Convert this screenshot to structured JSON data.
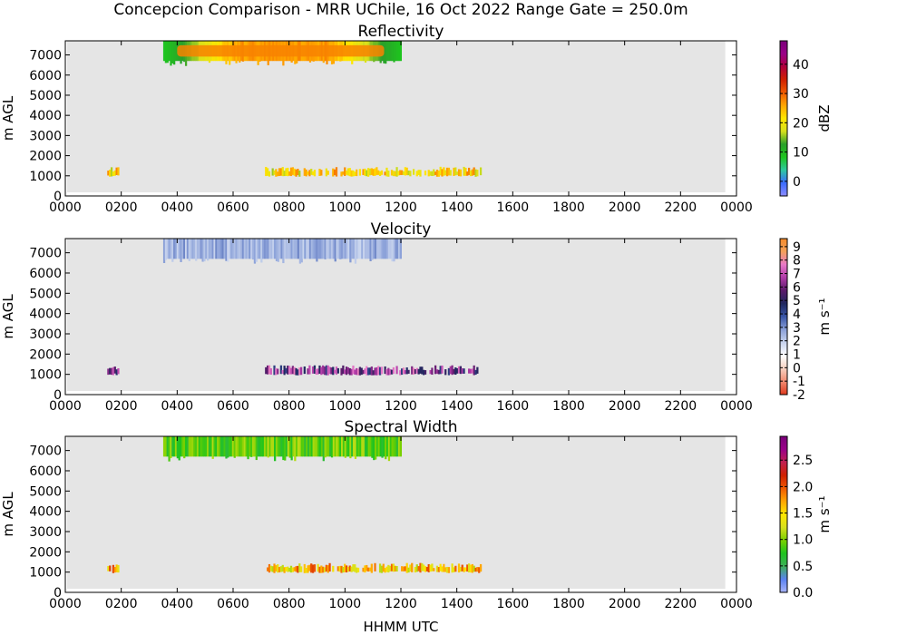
{
  "figure": {
    "suptitle": "Concepcion Comparison - MRR UChile, 16 Oct 2022 Range Gate = 250.0m",
    "xlabel": "HHMM UTC"
  },
  "chart_data": [
    {
      "type": "heatmap",
      "title": "Reflectivity",
      "ylabel": "m AGL",
      "xlim_hours": [
        0,
        24
      ],
      "ylim": [
        0,
        7700
      ],
      "x_tick_labels": [
        "0000",
        "0200",
        "0400",
        "0600",
        "0800",
        "1000",
        "1200",
        "1400",
        "1600",
        "1800",
        "2000",
        "2200",
        "0000"
      ],
      "y_ticks": [
        0,
        1000,
        2000,
        3000,
        4000,
        5000,
        6000,
        7000
      ],
      "colorbar": {
        "label": "dBZ",
        "min": -5,
        "max": 48,
        "ticks": [
          0,
          10,
          20,
          30,
          40
        ],
        "colors": [
          "#8c8cff",
          "#3b6bff",
          "#2fc8a0",
          "#1ec41e",
          "#2aa02a",
          "#d7e01d",
          "#ffe600",
          "#ffa500",
          "#f05a00",
          "#d02000",
          "#b0003c",
          "#9a0088",
          "#7a007a"
        ]
      },
      "features": [
        {
          "name": "upper layer",
          "x_start": "0330",
          "x_end": "1200",
          "y_min": 6700,
          "y_max": 7700,
          "core_value": 28,
          "edge_value": 8
        },
        {
          "name": "lower band",
          "x_start": "0130",
          "x_end": "1450",
          "y_min": 950,
          "y_max": 1450,
          "typical_value": 22
        }
      ]
    },
    {
      "type": "heatmap",
      "title": "Velocity",
      "ylabel": "m AGL",
      "xlim_hours": [
        0,
        24
      ],
      "ylim": [
        0,
        7700
      ],
      "x_tick_labels": [
        "0000",
        "0200",
        "0400",
        "0600",
        "0800",
        "1000",
        "1200",
        "1400",
        "1600",
        "1800",
        "2000",
        "2200",
        "0000"
      ],
      "y_ticks": [
        0,
        1000,
        2000,
        3000,
        4000,
        5000,
        6000,
        7000
      ],
      "colorbar": {
        "label": "m s⁻¹",
        "min": -2,
        "max": 9.6,
        "ticks": [
          -2,
          -1,
          0,
          1,
          2,
          3,
          4,
          5,
          6,
          7,
          8,
          9
        ],
        "colors": [
          "#e03a1e",
          "#f08a70",
          "#f7d0c0",
          "#ffffff",
          "#c8d4ee",
          "#8aa0d8",
          "#3a56a8",
          "#20285e",
          "#5a1a6a",
          "#b03aa8",
          "#e879c8",
          "#f4a15a",
          "#f58a2a"
        ]
      },
      "features": [
        {
          "name": "upper layer",
          "x_start": "0330",
          "x_end": "1200",
          "y_min": 6700,
          "y_max": 7700,
          "typical_value": 2.5
        },
        {
          "name": "lower band",
          "x_start": "0130",
          "x_end": "1450",
          "y_min": 950,
          "y_max": 1450,
          "typical_value": 6
        }
      ]
    },
    {
      "type": "heatmap",
      "title": "Spectral Width",
      "ylabel": "m AGL",
      "xlim_hours": [
        0,
        24
      ],
      "ylim": [
        0,
        7700
      ],
      "x_tick_labels": [
        "0000",
        "0200",
        "0400",
        "0600",
        "0800",
        "1000",
        "1200",
        "1400",
        "1600",
        "1800",
        "2000",
        "2200",
        "0000"
      ],
      "y_ticks": [
        0,
        1000,
        2000,
        3000,
        4000,
        5000,
        6000,
        7000
      ],
      "colorbar": {
        "label": "m s⁻¹",
        "min": 0,
        "max": 2.95,
        "ticks": [
          "0.0",
          "0.5",
          "1.0",
          "1.5",
          "2.0",
          "2.5"
        ],
        "colors": [
          "#a8b4f8",
          "#5a82f0",
          "#3fae5a",
          "#1ec41e",
          "#7ad000",
          "#d7e01d",
          "#ffe600",
          "#ffa500",
          "#f05a00",
          "#d02000",
          "#c02050",
          "#9a0088",
          "#7a007a"
        ]
      },
      "features": [
        {
          "name": "upper layer",
          "x_start": "0330",
          "x_end": "1200",
          "y_min": 6700,
          "y_max": 7700,
          "typical_value": 0.9
        },
        {
          "name": "lower band",
          "x_start": "0130",
          "x_end": "1450",
          "y_min": 950,
          "y_max": 1450,
          "typical_value": 1.6
        }
      ]
    }
  ]
}
